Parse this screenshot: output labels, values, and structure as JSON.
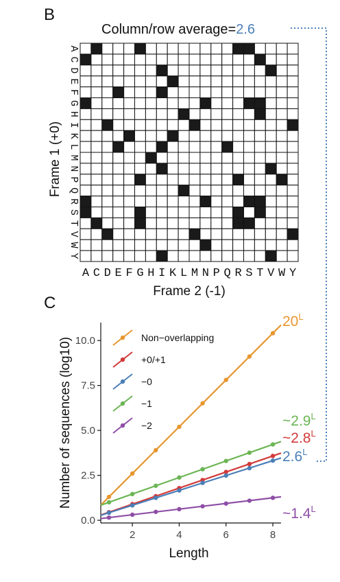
{
  "panelB": {
    "label": "B",
    "average_prefix": "Column/row average=",
    "average_value": "2.6",
    "average_color": "#4a7fb8",
    "ylabel": "Frame 1 (+0)",
    "xlabel": "Frame 2 (-1)"
  },
  "panelC": {
    "label": "C"
  },
  "chart_data": [
    {
      "type": "heatmap",
      "title": "Column/row average=2.6",
      "xlabel": "Frame 2 (-1)",
      "ylabel": "Frame 1 (+0)",
      "rows": [
        "A",
        "C",
        "D",
        "E",
        "F",
        "G",
        "H",
        "I",
        "K",
        "L",
        "M",
        "N",
        "P",
        "Q",
        "R",
        "S",
        "T",
        "V",
        "W",
        "Y"
      ],
      "cols": [
        "A",
        "C",
        "D",
        "E",
        "F",
        "G",
        "H",
        "I",
        "K",
        "L",
        "M",
        "N",
        "P",
        "Q",
        "R",
        "S",
        "T",
        "V",
        "W",
        "Y"
      ],
      "filled_color": "#1a1a1a",
      "values": [
        [
          0,
          1,
          0,
          0,
          0,
          1,
          0,
          0,
          0,
          0,
          0,
          0,
          0,
          0,
          1,
          1,
          0,
          0,
          0,
          0
        ],
        [
          1,
          0,
          0,
          0,
          0,
          0,
          0,
          0,
          0,
          0,
          0,
          0,
          0,
          0,
          0,
          0,
          1,
          0,
          0,
          0
        ],
        [
          0,
          0,
          0,
          0,
          0,
          0,
          0,
          1,
          0,
          0,
          0,
          0,
          0,
          0,
          0,
          0,
          0,
          1,
          0,
          0
        ],
        [
          0,
          0,
          0,
          0,
          0,
          0,
          0,
          0,
          1,
          0,
          0,
          0,
          0,
          0,
          0,
          0,
          0,
          0,
          0,
          0
        ],
        [
          0,
          0,
          0,
          1,
          0,
          0,
          0,
          1,
          0,
          0,
          0,
          0,
          0,
          0,
          0,
          0,
          0,
          0,
          0,
          0
        ],
        [
          1,
          0,
          0,
          0,
          0,
          0,
          0,
          0,
          0,
          0,
          0,
          1,
          0,
          0,
          0,
          1,
          1,
          0,
          0,
          0
        ],
        [
          0,
          0,
          0,
          0,
          0,
          0,
          0,
          0,
          0,
          1,
          0,
          0,
          0,
          0,
          0,
          0,
          1,
          0,
          0,
          0
        ],
        [
          0,
          0,
          1,
          0,
          0,
          0,
          0,
          0,
          0,
          0,
          1,
          0,
          0,
          0,
          0,
          0,
          0,
          0,
          0,
          1
        ],
        [
          0,
          0,
          0,
          0,
          1,
          0,
          0,
          0,
          1,
          0,
          0,
          0,
          0,
          0,
          0,
          0,
          0,
          0,
          0,
          0
        ],
        [
          0,
          0,
          0,
          1,
          0,
          0,
          0,
          1,
          0,
          0,
          0,
          0,
          0,
          1,
          0,
          0,
          0,
          0,
          0,
          0
        ],
        [
          0,
          0,
          0,
          0,
          0,
          0,
          1,
          0,
          0,
          0,
          0,
          0,
          0,
          0,
          0,
          0,
          0,
          0,
          0,
          0
        ],
        [
          0,
          0,
          0,
          0,
          0,
          0,
          0,
          1,
          0,
          0,
          0,
          0,
          0,
          0,
          0,
          0,
          0,
          1,
          0,
          0
        ],
        [
          0,
          0,
          0,
          0,
          0,
          1,
          0,
          0,
          0,
          0,
          0,
          0,
          0,
          0,
          1,
          0,
          0,
          0,
          1,
          0
        ],
        [
          0,
          0,
          0,
          0,
          0,
          0,
          0,
          0,
          0,
          1,
          0,
          0,
          0,
          0,
          0,
          0,
          0,
          0,
          0,
          0
        ],
        [
          1,
          0,
          0,
          0,
          0,
          0,
          0,
          0,
          0,
          0,
          0,
          1,
          0,
          0,
          0,
          1,
          1,
          0,
          0,
          0
        ],
        [
          1,
          0,
          0,
          0,
          0,
          1,
          0,
          0,
          0,
          0,
          0,
          0,
          0,
          0,
          1,
          0,
          1,
          0,
          0,
          0
        ],
        [
          0,
          1,
          0,
          0,
          0,
          1,
          0,
          0,
          0,
          0,
          0,
          0,
          0,
          0,
          1,
          1,
          0,
          0,
          0,
          0
        ],
        [
          0,
          0,
          1,
          0,
          0,
          0,
          0,
          0,
          0,
          0,
          1,
          0,
          0,
          0,
          0,
          0,
          0,
          0,
          0,
          1
        ],
        [
          0,
          0,
          0,
          0,
          0,
          0,
          0,
          0,
          0,
          0,
          0,
          1,
          0,
          0,
          0,
          0,
          0,
          0,
          0,
          0
        ],
        [
          0,
          0,
          0,
          0,
          0,
          0,
          0,
          1,
          0,
          0,
          0,
          0,
          0,
          0,
          0,
          0,
          0,
          1,
          0,
          0
        ]
      ]
    },
    {
      "type": "line",
      "xlabel": "Length",
      "ylabel": "Number of sequences (log10)",
      "xlim": [
        0.65,
        8.35
      ],
      "ylim": [
        -0.15,
        11.0
      ],
      "xticks": [
        2,
        4,
        6,
        8
      ],
      "yticks": [
        0.0,
        2.5,
        5.0,
        7.5,
        10.0
      ],
      "ytick_labels": [
        "0.0",
        "2.5",
        "5.0",
        "7.5",
        "10.0"
      ],
      "grid": false,
      "legend_position": "top-left",
      "x": [
        1,
        2,
        3,
        4,
        5,
        6,
        7,
        8
      ],
      "series": [
        {
          "name": "Non−overlapping",
          "color": "#e8962f",
          "end_label": "20",
          "end_label_sup": "L",
          "values": [
            1.3,
            2.6,
            3.9,
            5.2,
            6.51,
            7.81,
            9.11,
            10.41
          ]
        },
        {
          "name": "+0/+1",
          "color": "#d23a3a",
          "end_label": "~2.8",
          "end_label_sup": "L",
          "values": [
            0.45,
            0.9,
            1.34,
            1.79,
            2.24,
            2.69,
            3.13,
            3.58
          ]
        },
        {
          "name": "−0",
          "color": "#4a7fb8",
          "end_label": "2.6",
          "end_label_sup": "L",
          "values": [
            0.42,
            0.83,
            1.25,
            1.66,
            2.08,
            2.49,
            2.9,
            3.32
          ]
        },
        {
          "name": "−1",
          "color": "#6cb554",
          "end_label": "~2.9",
          "end_label_sup": "L",
          "values": [
            1.0,
            1.46,
            1.92,
            2.38,
            2.84,
            3.3,
            3.76,
            4.22
          ]
        },
        {
          "name": "−2",
          "color": "#8e4ea6",
          "end_label": "~1.4",
          "end_label_sup": "L",
          "values": [
            0.15,
            0.31,
            0.47,
            0.62,
            0.78,
            0.93,
            1.09,
            1.25
          ]
        }
      ]
    }
  ]
}
